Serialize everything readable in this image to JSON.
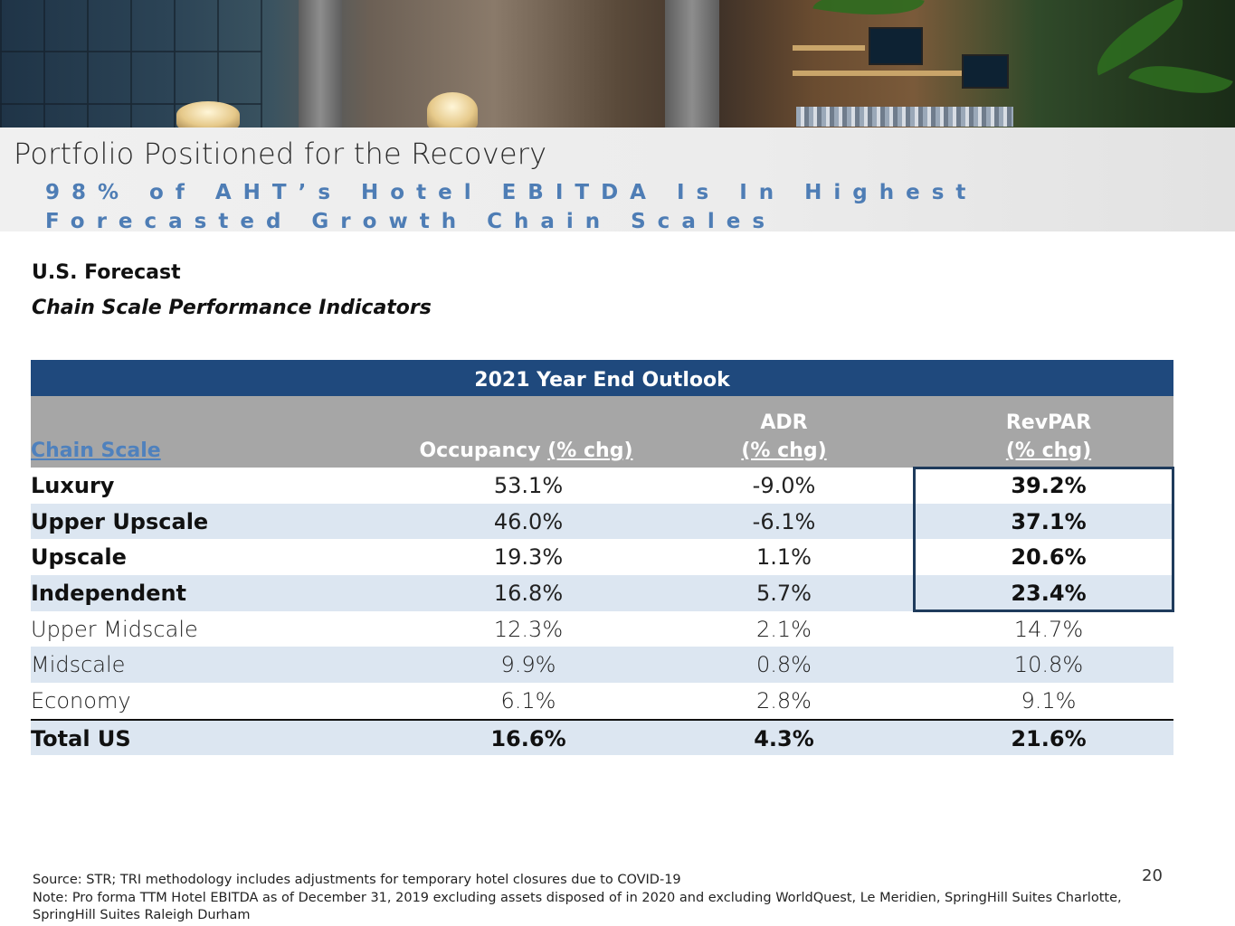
{
  "page": {
    "title": "Portfolio Positioned for the Recovery",
    "subtitle": "98% of AHT’s Hotel EBITDA Is In Highest Forecasted Growth Chain Scales",
    "page_number": "20"
  },
  "section": {
    "heading": "U.S. Forecast",
    "subheading": "Chain Scale Performance Indicators"
  },
  "table": {
    "band_title": "2021 Year End Outlook",
    "columns": {
      "chain_scale": "Chain Scale",
      "occupancy_label": "Occupancy ",
      "occupancy_unit": "(% chg)",
      "adr_label": "ADR",
      "adr_unit": "(% chg)",
      "revpar_label": "RevPAR",
      "revpar_unit": "(% chg)"
    },
    "rows": [
      {
        "name": "Luxury",
        "occupancy": "53.1%",
        "adr": "-9.0%",
        "revpar": "39.2%"
      },
      {
        "name": "Upper Upscale",
        "occupancy": "46.0%",
        "adr": "-6.1%",
        "revpar": "37.1%"
      },
      {
        "name": "Upscale",
        "occupancy": "19.3%",
        "adr": "1.1%",
        "revpar": "20.6%"
      },
      {
        "name": "Independent",
        "occupancy": "16.8%",
        "adr": "5.7%",
        "revpar": "23.4%"
      },
      {
        "name": "Upper Midscale",
        "occupancy": "12.3%",
        "adr": "2.1%",
        "revpar": "14.7%"
      },
      {
        "name": "Midscale",
        "occupancy": "9.9%",
        "adr": "0.8%",
        "revpar": "10.8%"
      },
      {
        "name": "Economy",
        "occupancy": "6.1%",
        "adr": "2.8%",
        "revpar": "9.1%"
      }
    ],
    "total": {
      "name": "Total US",
      "occupancy": "16.6%",
      "adr": "4.3%",
      "revpar": "21.6%"
    }
  },
  "notes": {
    "source": "Source: STR; TRI methodology includes adjustments for temporary hotel closures due to COVID-19",
    "note": "Note:  Pro forma TTM Hotel EBITDA as of December 31, 2019 excluding assets disposed of in 2020 and excluding WorldQuest, Le Meridien, SpringHill Suites Charlotte, SpringHill Suites Raleigh Durham"
  },
  "colors": {
    "header_navy": "#1f497d",
    "column_header_gray": "#a6a6a6",
    "row_band_blue": "#dce6f1",
    "subtitle_blue": "#4e7db5",
    "highlight_border": "#1f3b5c"
  }
}
